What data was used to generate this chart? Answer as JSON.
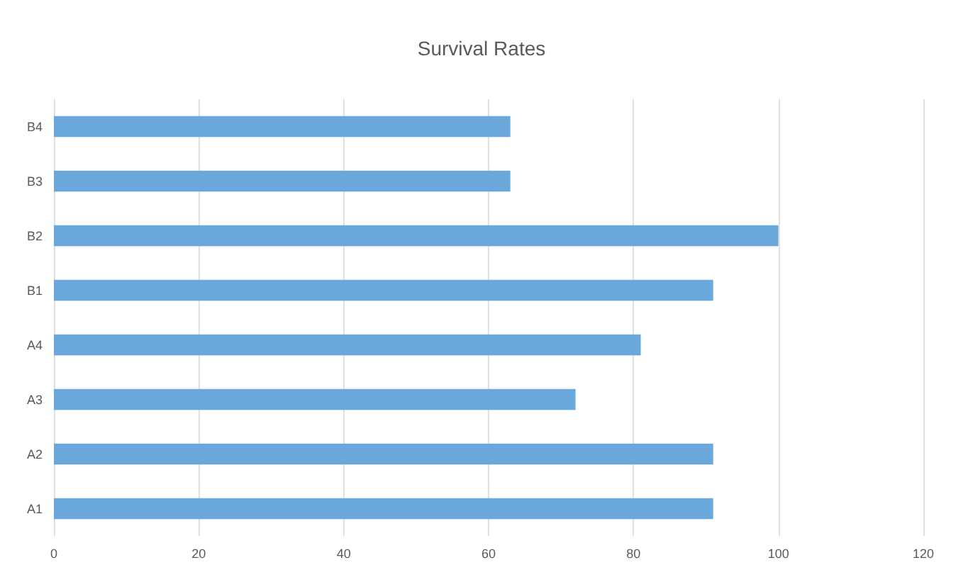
{
  "chart_data": {
    "type": "bar",
    "orientation": "horizontal",
    "title": "Survival Rates",
    "categories": [
      "B4",
      "B3",
      "B2",
      "B1",
      "A4",
      "A3",
      "A2",
      "A1"
    ],
    "values": [
      63,
      63,
      100,
      91,
      81,
      72,
      91,
      91
    ],
    "color": "#6aa8db",
    "xlim": [
      0,
      120
    ],
    "xticks": [
      0,
      20,
      40,
      60,
      80,
      100,
      120
    ],
    "grid": "x"
  }
}
